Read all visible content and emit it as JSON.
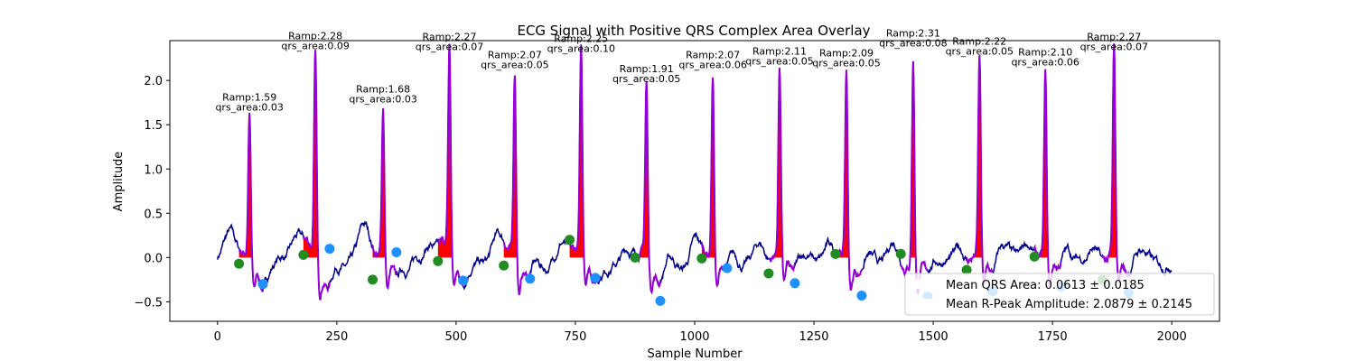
{
  "chart_data": {
    "type": "line",
    "title": "ECG Signal with Positive QRS Complex Area Overlay",
    "xlabel": "Sample Number",
    "ylabel": "Amplitude",
    "xlim": [
      -100,
      2100
    ],
    "ylim": [
      -0.72,
      2.45
    ],
    "xticks": [
      0,
      250,
      500,
      750,
      1000,
      1250,
      1500,
      1750,
      2000
    ],
    "xtick_labels": [
      "0",
      "250",
      "500",
      "750",
      "1000",
      "1250",
      "1500",
      "1750",
      "2000"
    ],
    "yticks": [
      -0.5,
      0.0,
      0.5,
      1.0,
      1.5,
      2.0
    ],
    "ytick_labels": [
      "−0.5",
      "0.0",
      "0.5",
      "1.0",
      "1.5",
      "2.0"
    ],
    "grid": false,
    "colors": {
      "signal": "#00008b",
      "qrs_segment": "#9400d3",
      "qrs_fill": "#ff0000",
      "onset_marker": "#228b22",
      "offset_marker": "#1e90ff"
    },
    "beats": [
      {
        "onset_x": 45,
        "onset_y": -0.07,
        "peak_x": 67,
        "ramp": 1.59,
        "offset_x": 95,
        "offset_y": -0.3,
        "ramp_label": "Ramp:1.59",
        "area_label": "qrs_area:0.03"
      },
      {
        "onset_x": 180,
        "onset_y": 0.03,
        "peak_x": 205,
        "ramp": 2.28,
        "offset_x": 235,
        "offset_y": 0.1,
        "ramp_label": "Ramp:2.28",
        "area_label": "qrs_area:0.09"
      },
      {
        "onset_x": 325,
        "onset_y": -0.25,
        "peak_x": 347,
        "ramp": 1.68,
        "offset_x": 375,
        "offset_y": 0.06,
        "ramp_label": "Ramp:1.68",
        "area_label": "qrs_area:0.03"
      },
      {
        "onset_x": 462,
        "onset_y": -0.04,
        "peak_x": 486,
        "ramp": 2.27,
        "offset_x": 515,
        "offset_y": -0.26,
        "ramp_label": "Ramp:2.27",
        "area_label": "qrs_area:0.07"
      },
      {
        "onset_x": 600,
        "onset_y": -0.09,
        "peak_x": 623,
        "ramp": 2.07,
        "offset_x": 655,
        "offset_y": -0.24,
        "ramp_label": "Ramp:2.07",
        "area_label": "qrs_area:0.05"
      },
      {
        "onset_x": 738,
        "onset_y": 0.2,
        "peak_x": 762,
        "ramp": 2.25,
        "offset_x": 792,
        "offset_y": -0.23,
        "ramp_label": "Ramp:2.25",
        "area_label": "qrs_area:0.10"
      },
      {
        "onset_x": 875,
        "onset_y": 0.0,
        "peak_x": 899,
        "ramp": 1.91,
        "offset_x": 928,
        "offset_y": -0.49,
        "ramp_label": "Ramp:1.91",
        "area_label": "qrs_area:0.05"
      },
      {
        "onset_x": 1015,
        "onset_y": -0.01,
        "peak_x": 1038,
        "ramp": 2.07,
        "offset_x": 1068,
        "offset_y": -0.12,
        "ramp_label": "Ramp:2.07",
        "area_label": "qrs_area:0.06"
      },
      {
        "onset_x": 1155,
        "onset_y": -0.18,
        "peak_x": 1178,
        "ramp": 2.11,
        "offset_x": 1210,
        "offset_y": -0.29,
        "ramp_label": "Ramp:2.11",
        "area_label": "qrs_area:0.05"
      },
      {
        "onset_x": 1295,
        "onset_y": 0.04,
        "peak_x": 1318,
        "ramp": 2.09,
        "offset_x": 1350,
        "offset_y": -0.43,
        "ramp_label": "Ramp:2.09",
        "area_label": "qrs_area:0.05"
      },
      {
        "onset_x": 1432,
        "onset_y": 0.04,
        "peak_x": 1458,
        "ramp": 2.31,
        "offset_x": 1488,
        "offset_y": -0.44,
        "ramp_label": "Ramp:2.31",
        "area_label": "qrs_area:0.08"
      },
      {
        "onset_x": 1570,
        "onset_y": -0.14,
        "peak_x": 1597,
        "ramp": 2.22,
        "offset_x": 1625,
        "offset_y": -0.38,
        "ramp_label": "Ramp:2.22",
        "area_label": "qrs_area:0.05"
      },
      {
        "onset_x": 1712,
        "onset_y": 0.01,
        "peak_x": 1735,
        "ramp": 2.1,
        "offset_x": 1768,
        "offset_y": -0.33,
        "ramp_label": "Ramp:2.10",
        "area_label": "qrs_area:0.06"
      },
      {
        "onset_x": 1855,
        "onset_y": -0.25,
        "peak_x": 1879,
        "ramp": 2.27,
        "offset_x": 1910,
        "offset_y": -0.4,
        "ramp_label": "Ramp:2.27",
        "area_label": "qrs_area:0.07"
      }
    ],
    "legend": {
      "placement": "lower-right",
      "entries": [
        {
          "label": "Mean QRS Area: 0.0613 ± 0.0185",
          "color": "#ffffff"
        },
        {
          "label": "Mean R-Peak Amplitude: 2.0879 ± 0.2145",
          "color": "#ffffff"
        }
      ]
    }
  }
}
